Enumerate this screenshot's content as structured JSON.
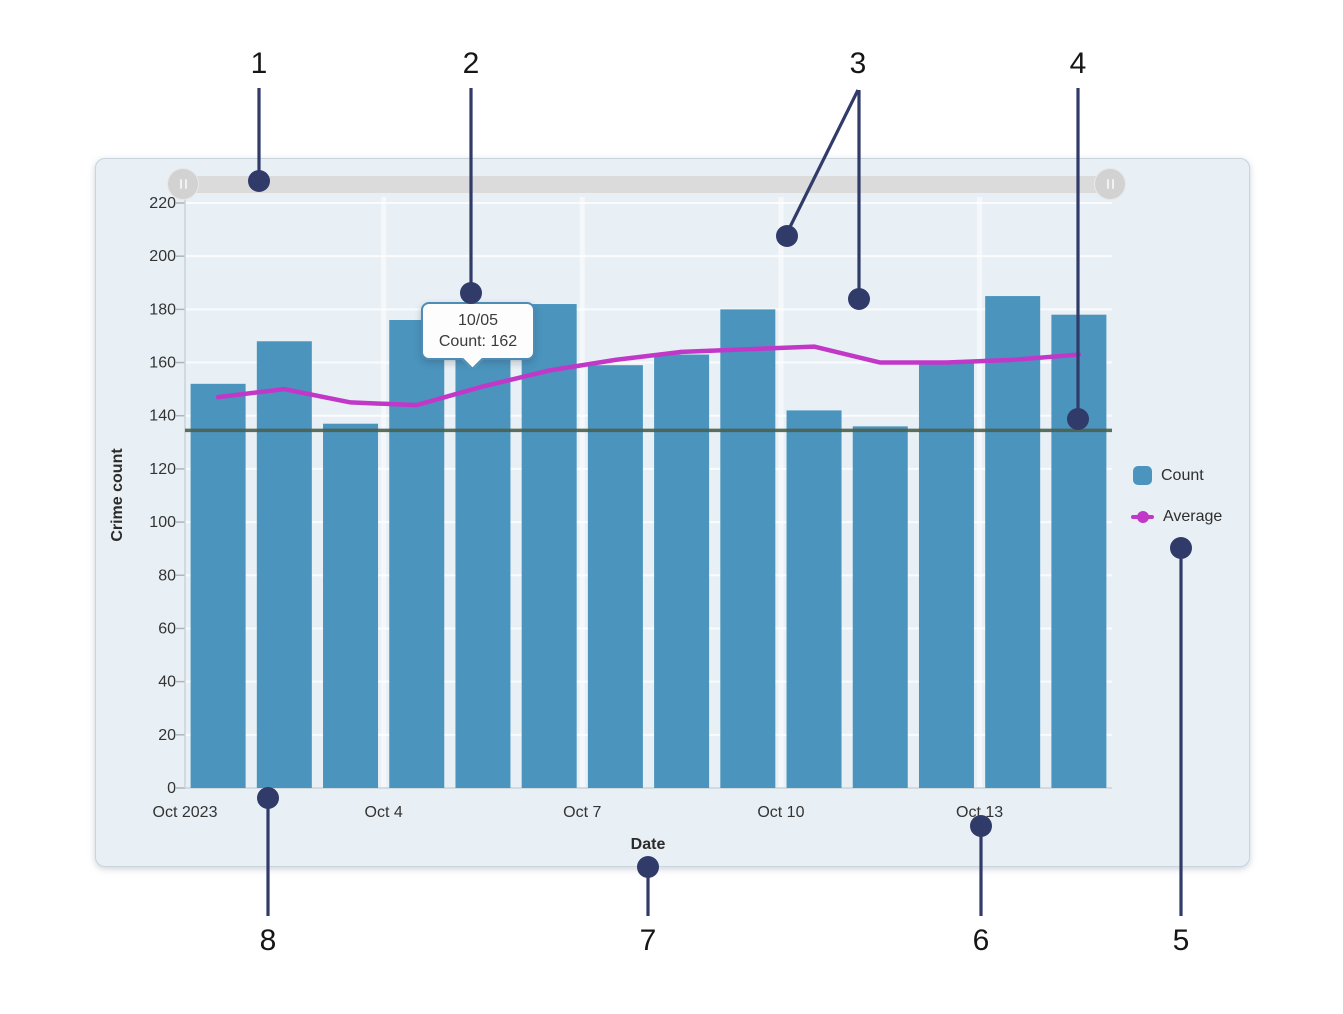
{
  "chart_data": {
    "type": "bar",
    "title": "",
    "xlabel": "Date",
    "ylabel": "Crime count",
    "categories": [
      "10/01",
      "10/02",
      "10/03",
      "10/04",
      "10/05",
      "10/06",
      "10/07",
      "10/08",
      "10/09",
      "10/10",
      "10/11",
      "10/12",
      "10/13",
      "10/14"
    ],
    "x_tick_labels": [
      "Oct 2023",
      "Oct 4",
      "Oct 7",
      "Oct 10",
      "Oct 13"
    ],
    "x_tick_category_indexes": [
      0,
      3,
      6,
      9,
      12
    ],
    "y_ticks": [
      0,
      20,
      40,
      60,
      80,
      100,
      120,
      140,
      160,
      180,
      200,
      220
    ],
    "ylim": [
      0,
      220
    ],
    "grid": true,
    "legend_position": "right",
    "series": [
      {
        "name": "Count",
        "type": "bar",
        "color": "#4a94be",
        "values": [
          152,
          168,
          137,
          176,
          162,
          182,
          159,
          163,
          180,
          142,
          136,
          160,
          185,
          178
        ]
      },
      {
        "name": "Average",
        "type": "line",
        "color": "#c138c9",
        "values": [
          147,
          150,
          145,
          144,
          151,
          157,
          161,
          164,
          165,
          166,
          160,
          160,
          161,
          163
        ]
      }
    ],
    "reference_line": {
      "value": 134.5,
      "color": "#4a6050"
    }
  },
  "tooltip": {
    "title": "10/05",
    "text": "Count: 162"
  },
  "legend": {
    "items": [
      {
        "label": "Count",
        "type": "bar",
        "color": "#4a94be"
      },
      {
        "label": "Average",
        "type": "line",
        "color": "#c138c9"
      }
    ]
  },
  "scrollbar": {
    "handle_icon": "grip-bars"
  },
  "annotations": {
    "markers": [
      "1",
      "2",
      "3",
      "4",
      "5",
      "6",
      "7",
      "8"
    ]
  },
  "colors": {
    "bar": "#4a94be",
    "average_line": "#c138c9",
    "reference_line": "#4a6050",
    "annotation": "#313b69",
    "panel_bg": "#e9f0f5",
    "tooltip_border": "#4d8cb5",
    "gridline": "#ffffff",
    "axis_text": "#333333"
  }
}
